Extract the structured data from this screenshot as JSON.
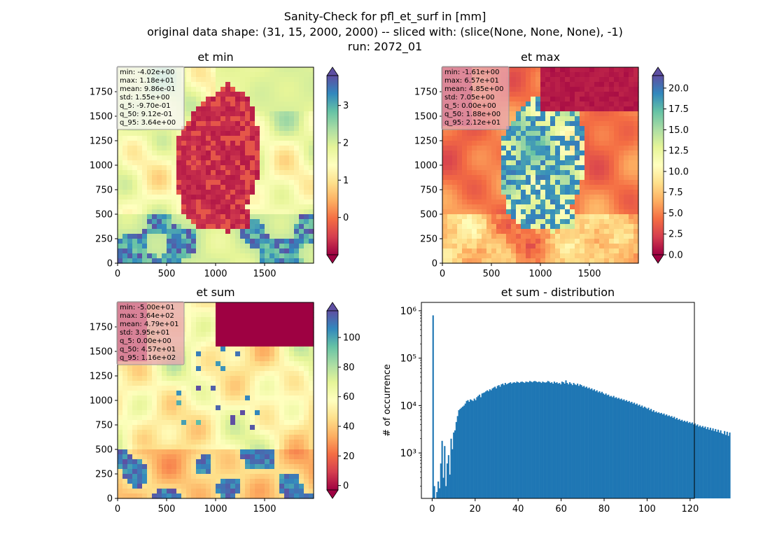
{
  "suptitle": [
    "Sanity-Check for pfl_et_surf in [mm]",
    "original data shape: (31, 15, 2000, 2000) -- sliced with: (slice(None, None, None), -1)",
    "run: 2072_01"
  ],
  "colormap": "Spectral",
  "colors": {
    "hist_bar": "#1f77b4",
    "stats_box_panel1": "#f7f7f7",
    "stats_box_panel2": "#e8a7b0",
    "stats_box_panel3": "#e8a7b0"
  },
  "chart_data": [
    {
      "type": "heatmap",
      "title": "et min",
      "xlim": [
        0,
        2000
      ],
      "ylim": [
        0,
        2000
      ],
      "xticks": [
        0,
        500,
        1000,
        1500
      ],
      "yticks": [
        0,
        250,
        500,
        750,
        1000,
        1250,
        1500,
        1750
      ],
      "colorbar": {
        "min": -1,
        "max": 3.8,
        "ticks": [
          0,
          1,
          2,
          3
        ],
        "extend": "both"
      },
      "stats": [
        "min: -4.02e+00",
        "max: 1.18e+01",
        "mean: 9.86e-01",
        "std: 1.55e+00",
        "q_5: -9.70e-01",
        "q_50: 9.12e-01",
        "q_95: 3.64e+00"
      ]
    },
    {
      "type": "heatmap",
      "title": "et max",
      "xlim": [
        0,
        2000
      ],
      "ylim": [
        0,
        2000
      ],
      "xticks": [
        0,
        500,
        1000,
        1500
      ],
      "yticks": [
        0,
        250,
        500,
        750,
        1000,
        1250,
        1500,
        1750
      ],
      "colorbar": {
        "min": 0,
        "max": 21.5,
        "ticks": [
          "0.0",
          "2.5",
          "5.0",
          "7.5",
          "10.0",
          "12.5",
          "15.0",
          "17.5",
          "20.0"
        ],
        "extend": "both"
      },
      "stats": [
        "min: -1.61e+00",
        "max: 6.57e+01",
        "mean: 4.85e+00",
        "std: 7.05e+00",
        "q_5: 0.00e+00",
        "q_50: 1.88e+00",
        "q_95: 2.12e+01"
      ]
    },
    {
      "type": "heatmap",
      "title": "et sum",
      "xlim": [
        0,
        2000
      ],
      "ylim": [
        0,
        2000
      ],
      "xticks": [
        0,
        500,
        1000,
        1500
      ],
      "yticks": [
        0,
        250,
        500,
        750,
        1000,
        1250,
        1500,
        1750
      ],
      "colorbar": {
        "min": -3,
        "max": 118,
        "ticks": [
          0,
          20,
          40,
          60,
          80,
          100
        ],
        "extend": "both"
      },
      "stats": [
        "min: -5.00e+01",
        "max: 3.64e+02",
        "mean: 4.79e+01",
        "std: 3.95e+01",
        "q_5: 0.00e+00",
        "q_50: 4.57e+01",
        "q_95: 1.16e+02"
      ]
    },
    {
      "type": "bar",
      "title": "et sum - distribution",
      "xlabel": "",
      "ylabel": "# of occurrence",
      "yscale": "log",
      "xlim": [
        -5,
        122
      ],
      "ylim": [
        110,
        1500000
      ],
      "xticks": [
        0,
        20,
        40,
        60,
        80,
        100,
        120
      ],
      "yticks": [
        {
          "value": 1000,
          "label": "10³"
        },
        {
          "value": 10000,
          "label": "10⁴"
        },
        {
          "value": 100000,
          "label": "10⁵"
        },
        {
          "value": 1000000,
          "label": "10⁶"
        }
      ],
      "bin_start": -0.5,
      "bin_width": 0.6,
      "values": [
        0,
        800000,
        200,
        0,
        150,
        250,
        180,
        600,
        1800,
        300,
        1400,
        200,
        600,
        900,
        350,
        2000,
        1200,
        2700,
        3000,
        4500,
        6000,
        8000,
        8500,
        9000,
        9500,
        10000,
        11000,
        12500,
        13000,
        12000,
        13500,
        13000,
        12500,
        14000,
        13000,
        15000,
        16000,
        17000,
        15000,
        18000,
        18500,
        19000,
        20000,
        21000,
        20000,
        22000,
        21000,
        23000,
        24000,
        25000,
        23000,
        26000,
        27000,
        25000,
        28000,
        29000,
        27000,
        30000,
        28000,
        29000,
        30000,
        31000,
        29000,
        30500,
        31000,
        30000,
        32000,
        31000,
        30000,
        31500,
        32000,
        31000,
        30000,
        32000,
        31500,
        31000,
        33000,
        32000,
        31000,
        32500,
        33000,
        32000,
        31000,
        32000,
        31500,
        30000,
        32000,
        31000,
        30500,
        31000,
        33000,
        32000,
        30000,
        31000,
        29000,
        32000,
        30000,
        31000,
        29000,
        30000,
        28000,
        32000,
        31000,
        29000,
        34000,
        30000,
        28000,
        31000,
        29000,
        27000,
        30000,
        28000,
        27000,
        29000,
        26000,
        28000,
        27000,
        25000,
        26000,
        24000,
        25000,
        23000,
        24000,
        22000,
        23000,
        21000,
        22000,
        20000,
        21000,
        19000,
        20000,
        18500,
        19500,
        18000,
        17000,
        18000,
        16500,
        17000,
        15500,
        16000,
        15000,
        16000,
        14500,
        15000,
        14000,
        14500,
        13500,
        14000,
        13000,
        13500,
        12500,
        13000,
        12000,
        12500,
        11500,
        12000,
        11000,
        11500,
        10500,
        11000,
        10000,
        10500,
        9500,
        10000,
        9000,
        9500,
        9000,
        8500,
        9000,
        8000,
        8500,
        7500,
        8000,
        7200,
        7500,
        7000,
        7200,
        6800,
        7000,
        6500,
        6800,
        6200,
        6500,
        6000,
        6200,
        5800,
        6000,
        5500,
        5800,
        5200,
        5500,
        5000,
        5200,
        4800,
        5000,
        4600,
        4800,
        4500,
        4700,
        4300,
        4500,
        4200,
        4400,
        4000,
        4200,
        3800,
        4000,
        3600,
        3800,
        3500,
        3700,
        3400,
        3600,
        3200,
        3500,
        3100,
        3400,
        3000,
        3300,
        2900,
        3200,
        2800,
        3100,
        2700,
        3000,
        2600,
        2500,
        2900,
        2400,
        2800,
        2300,
        2700
      ]
    }
  ]
}
